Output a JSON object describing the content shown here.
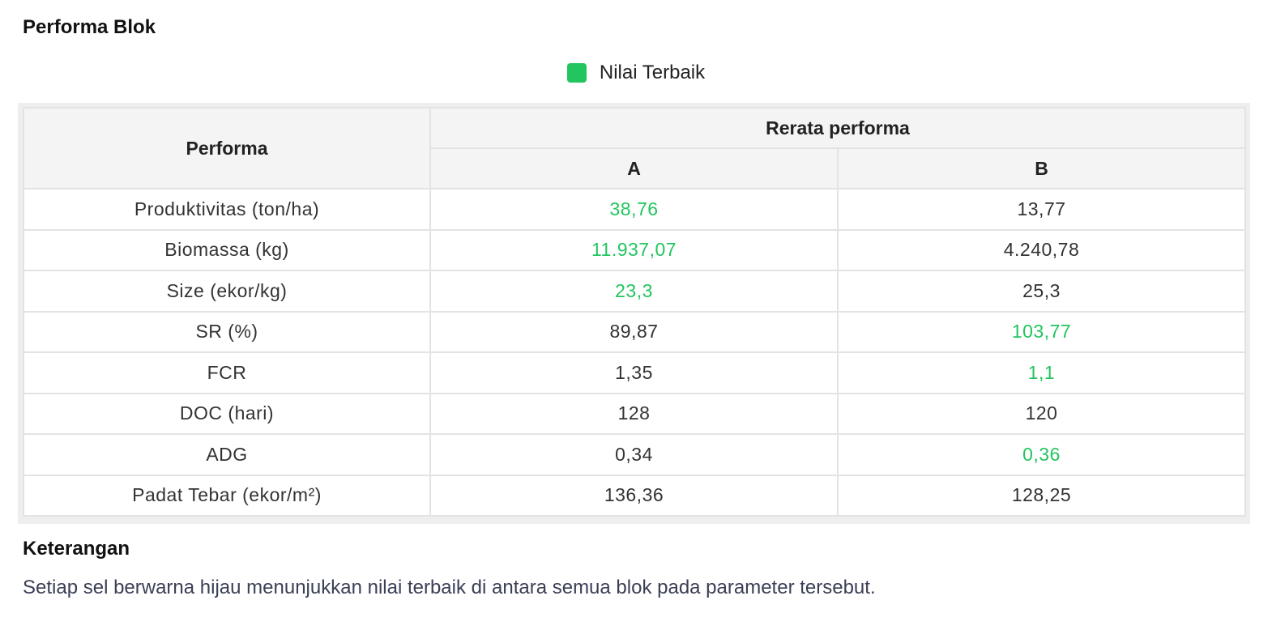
{
  "title": "Performa Blok",
  "legend": {
    "label": "Nilai Terbaik",
    "color": "#22c55e"
  },
  "table": {
    "header_param": "Performa",
    "header_group": "Rerata performa",
    "columns": [
      "A",
      "B"
    ],
    "rows": [
      {
        "param": "Produktivitas (ton/ha)",
        "a": "38,76",
        "b": "13,77",
        "best": "a"
      },
      {
        "param": "Biomassa (kg)",
        "a": "11.937,07",
        "b": "4.240,78",
        "best": "a"
      },
      {
        "param": "Size (ekor/kg)",
        "a": "23,3",
        "b": "25,3",
        "best": "a"
      },
      {
        "param": "SR (%)",
        "a": "89,87",
        "b": "103,77",
        "best": "b"
      },
      {
        "param": "FCR",
        "a": "1,35",
        "b": "1,1",
        "best": "b"
      },
      {
        "param": "DOC (hari)",
        "a": "128",
        "b": "120",
        "best": ""
      },
      {
        "param": "ADG",
        "a": "0,34",
        "b": "0,36",
        "best": "b"
      },
      {
        "param": "Padat Tebar (ekor/m²)",
        "a": "136,36",
        "b": "128,25",
        "best": ""
      }
    ]
  },
  "notes": {
    "title": "Keterangan",
    "text": "Setiap sel berwarna hijau menunjukkan nilai terbaik di antara semua blok pada parameter tersebut."
  }
}
